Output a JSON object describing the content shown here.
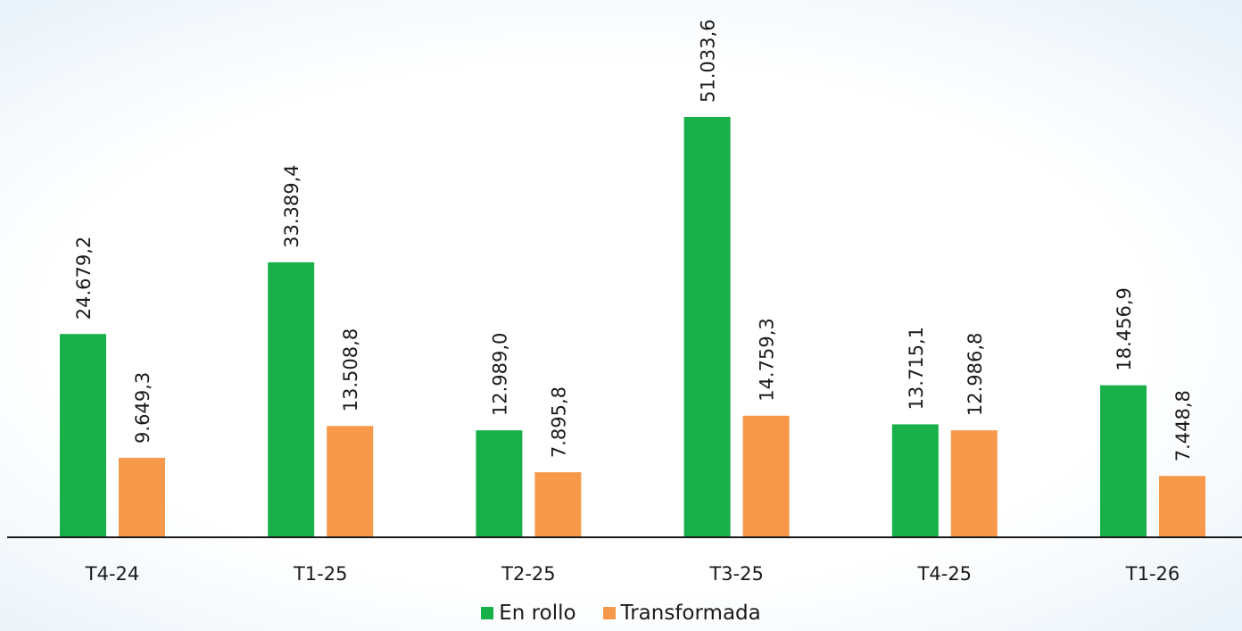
{
  "chart_data": {
    "type": "bar",
    "title": "",
    "xlabel": "",
    "ylabel": "",
    "categories": [
      "T4-24",
      "T1-25",
      "T2-25",
      "T3-25",
      "T4-25",
      "T1-26"
    ],
    "series": [
      {
        "name": "En rollo",
        "color": "#19b04a",
        "values": [
          24679.2,
          33389.4,
          12989.0,
          51033.6,
          13715.1,
          18456.9
        ],
        "labels": [
          "24.679,2",
          "33.389,4",
          "12.989,0",
          "51.033,6",
          "13.715,1",
          "18.456,9"
        ]
      },
      {
        "name": "Transformada",
        "color": "#f7994a",
        "values": [
          9649.3,
          13508.8,
          7895.8,
          14759.3,
          12986.8,
          7448.8
        ],
        "labels": [
          "9.649,3",
          "13.508,8",
          "7.895,8",
          "14.759,3",
          "12.986,8",
          "7.448,8"
        ]
      }
    ],
    "ylim": [
      0,
      51033.6
    ],
    "grid": false,
    "legend_position": "bottom",
    "axis_color": "#1a1a1a"
  }
}
